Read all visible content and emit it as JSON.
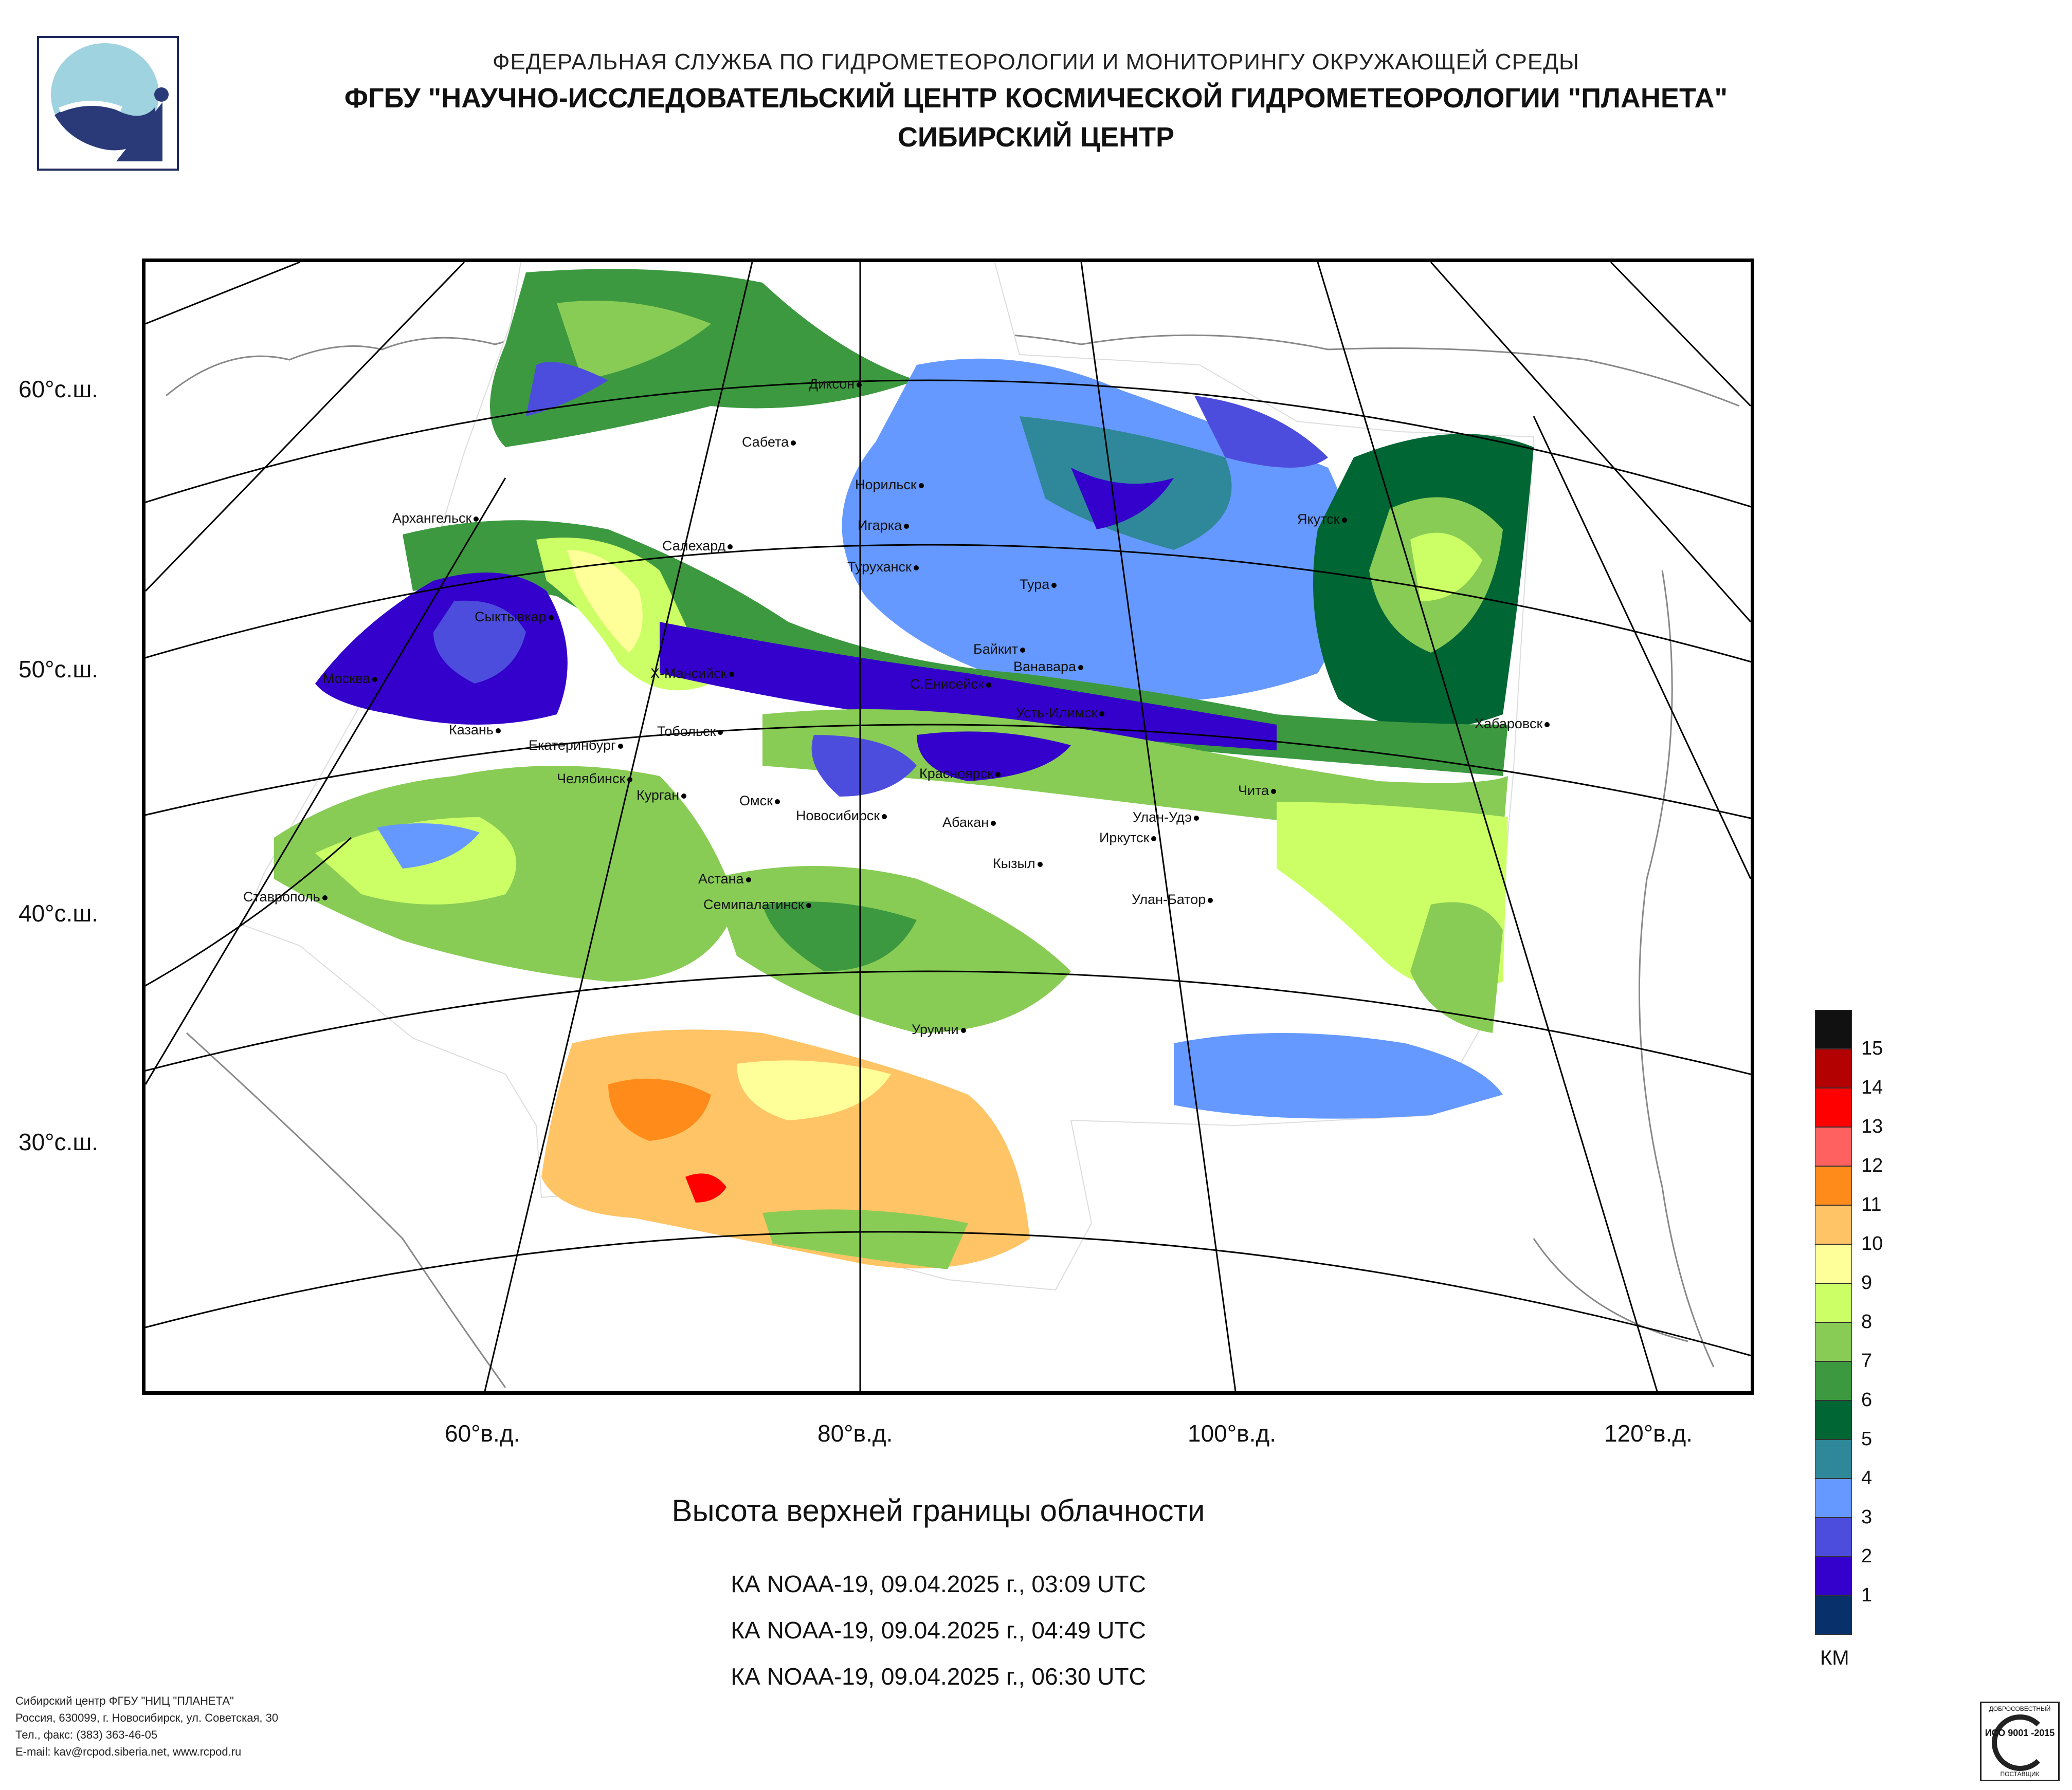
{
  "header": {
    "line1": "ФЕДЕРАЛЬНАЯ СЛУЖБА ПО ГИДРОМЕТЕОРОЛОГИИ И МОНИТОРИНГУ ОКРУЖАЮЩЕЙ СРЕДЫ",
    "line2": "ФГБУ \"НАУЧНО-ИССЛЕДОВАТЕЛЬСКИЙ ЦЕНТР КОСМИЧЕСКОЙ ГИДРОМЕТЕОРОЛОГИИ \"ПЛАНЕТА\"",
    "line3": "СИБИРСКИЙ ЦЕНТР"
  },
  "map": {
    "lat_labels": [
      "60°с.ш.",
      "50°с.ш.",
      "40°с.ш.",
      "30°с.ш."
    ],
    "lon_labels": [
      "60°в.д.",
      "80°в.д.",
      "100°в.д.",
      "120°в.д."
    ],
    "cities": [
      "Диксон",
      "Сабета",
      "Норильск",
      "Игарка",
      "Архангельск",
      "Салехард",
      "Туруханск",
      "Якутск",
      "Тура",
      "Сыктывкар",
      "Байкит",
      "Ванавара",
      "Москва",
      "Х-Мансийск",
      "С.Енисейск",
      "Усть-Илимск",
      "Хабаровск",
      "Казань",
      "Екатеринбург",
      "Тобольск",
      "Красноярск",
      "Чита",
      "Челябинск",
      "Курган",
      "Омск",
      "Новосибирск",
      "Абакан",
      "Улан-Удэ",
      "Иркутск",
      "Кызыл",
      "Астана",
      "Ставрополь",
      "Семипалатинск",
      "Улан-Батор",
      "Урумчи"
    ]
  },
  "caption": "Высота верхней границы облачности",
  "passes": [
    "КА NOAA-19, 09.04.2025 г., 03:09 UTC",
    "КА NOAA-19, 09.04.2025 г., 04:49 UTC",
    "КА NOAA-19, 09.04.2025 г., 06:30 UTC"
  ],
  "legend": {
    "unit": "КМ",
    "labels": [
      "15",
      "14",
      "13",
      "12",
      "11",
      "10",
      "9",
      "8",
      "7",
      "6",
      "5",
      "4",
      "3",
      "2",
      "1"
    ],
    "colors": [
      "#111111",
      "#b30000",
      "#ff0000",
      "#ff6060",
      "#ff8c1a",
      "#ffc466",
      "#ffff99",
      "#ccff66",
      "#88cc55",
      "#3d9940",
      "#006633",
      "#2e8899",
      "#6699ff",
      "#4d4ddd",
      "#3300cc",
      "#08306b"
    ]
  },
  "footer": {
    "lines": [
      "Сибирский центр ФГБУ \"НИЦ \"ПЛАНЕТА\"",
      "Россия, 630099, г. Новосибирск, ул. Советская, 30",
      "Тел., факс: (383) 363-46-05",
      "E-mail: kav@rcpod.siberia.net, www.rcpod.ru"
    ]
  },
  "certificate": {
    "top": "ДОБРОСОВЕСТНЫЙ",
    "middle": "ИСО 9001 -2015",
    "bottom": "ПОСТАВЩИК"
  }
}
